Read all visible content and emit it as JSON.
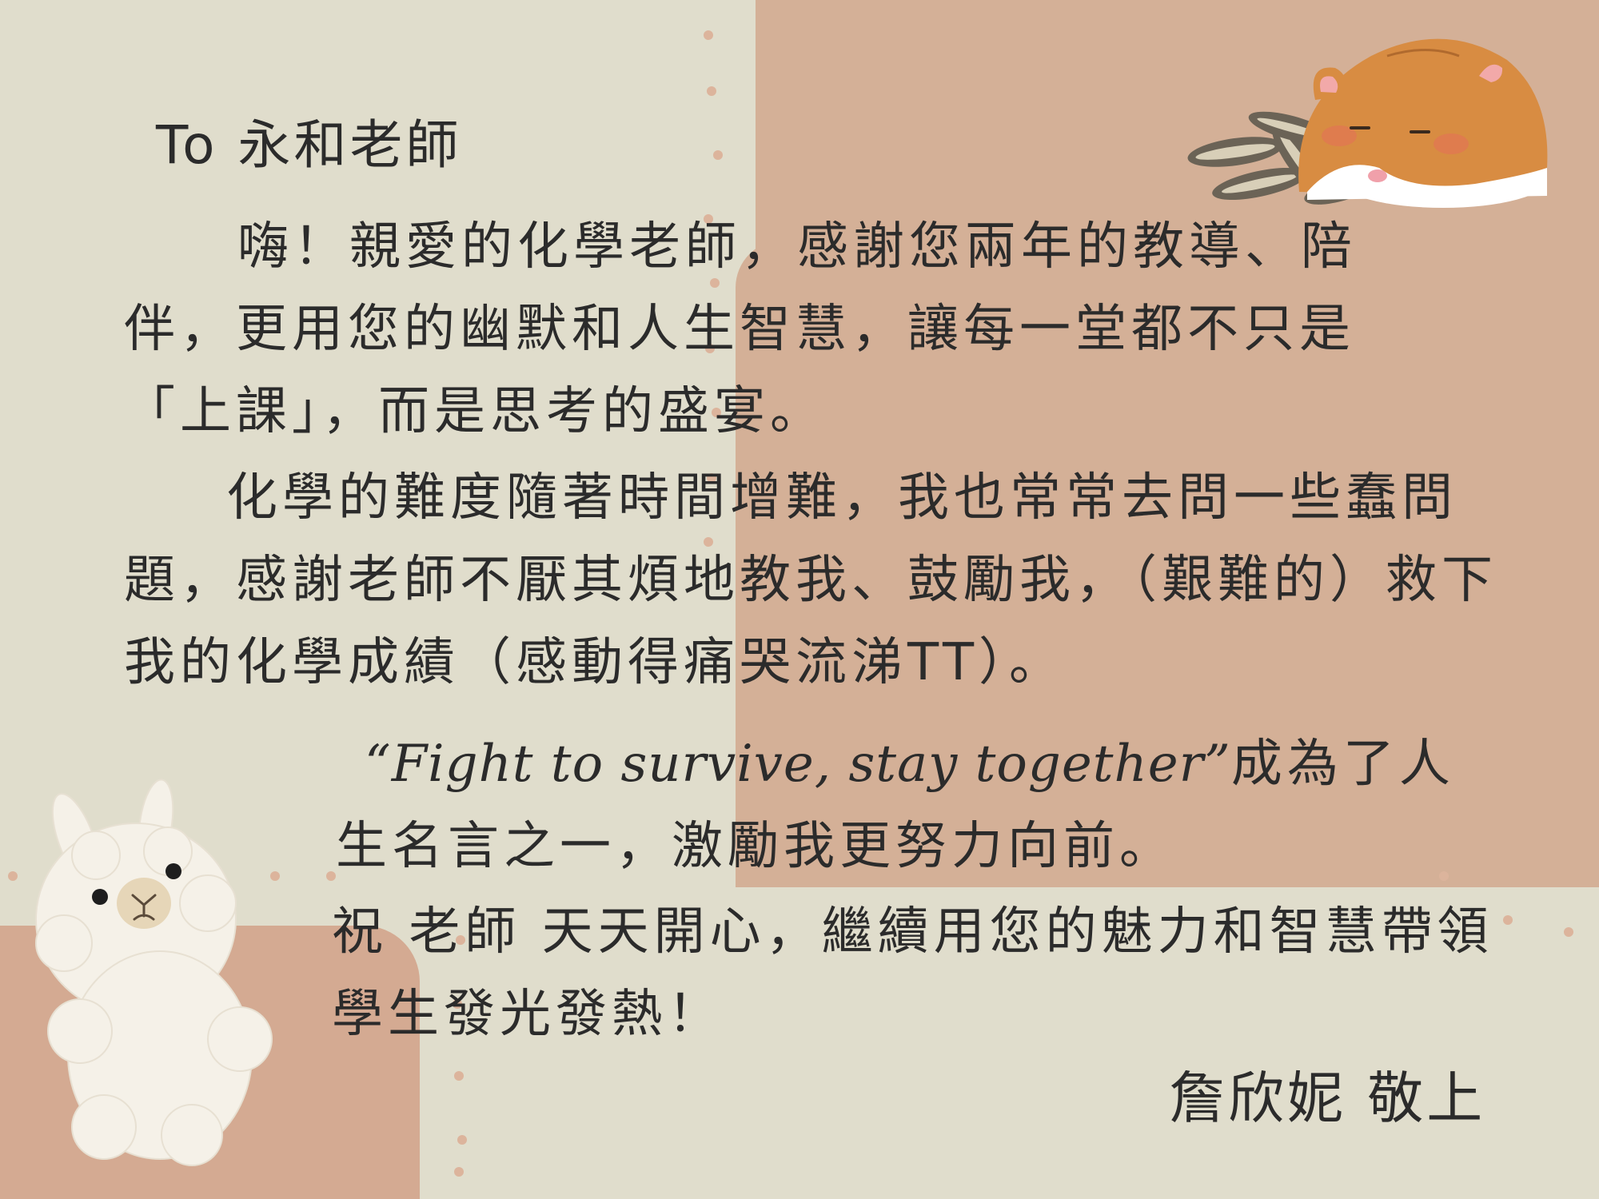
{
  "letter": {
    "greeting": "To 永和老師",
    "paragraph1": "嗨！親愛的化學老師，感謝您兩年的教導、陪伴，更用您的幽默和人生智慧，讓每一堂都不只是「上課」，而是思考的盛宴。",
    "paragraph2": "化學的難度隨著時間增難，我也常常去問一些蠢問題，感謝老師不厭其煩地教我、鼓勵我，（艱難的）救下我的化學成績（感動得痛哭流涕TT）。",
    "paragraph3_quote": "“Fight to survive, stay together”",
    "paragraph3_rest": "成為了人生名言之一，激勵我更努力向前。",
    "paragraph4": "祝 老師 天天開心，繼續用您的魅力和智慧帶領學生發光發熱！",
    "signature": "詹欣妮 敬上"
  },
  "decorations": {
    "hamster_icon": "hamster-illustration",
    "seeds_icon": "sunflower-seeds-illustration",
    "alpaca_icon": "alpaca-illustration"
  },
  "colors": {
    "background_light": "#e0ddcc",
    "background_tan": "#d4b097",
    "text": "#2b2b2b"
  }
}
